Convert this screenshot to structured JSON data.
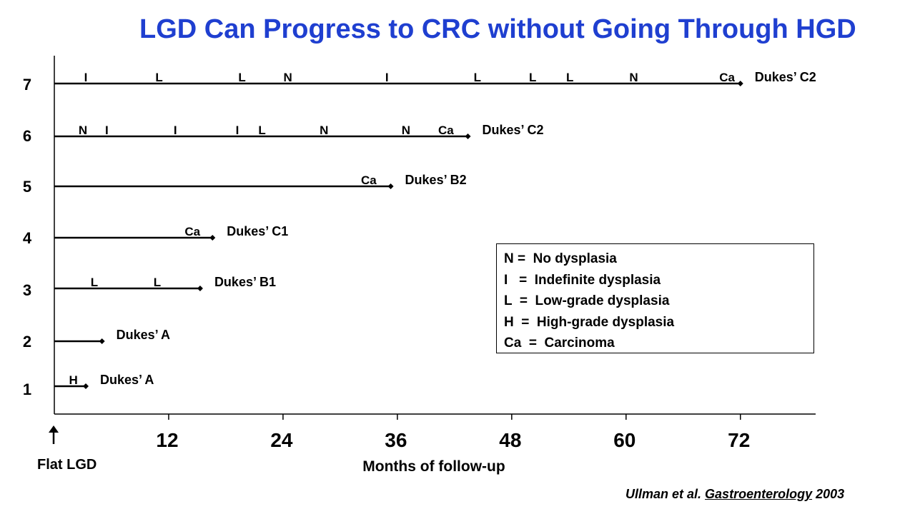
{
  "title": "LGD Can Progress to CRC without Going Through HGD",
  "chart_data": {
    "type": "timeline",
    "title": "LGD Can Progress to CRC without Going Through HGD",
    "xlabel": "Months of follow-up",
    "x_origin_label": "Flat LGD",
    "x_ticks": [
      "12",
      "24",
      "36",
      "48",
      "60",
      "72"
    ],
    "x_tick_values": [
      12,
      24,
      36,
      48,
      60,
      72
    ],
    "xlim": [
      0,
      80
    ],
    "y_categories": [
      "1",
      "2",
      "3",
      "4",
      "5",
      "6",
      "7"
    ],
    "patients": [
      {
        "id": "1",
        "end_month": 3.3,
        "outcome": "Dukes’ A",
        "findings": [
          {
            "label": "H",
            "month": 2
          }
        ]
      },
      {
        "id": "2",
        "end_month": 5,
        "outcome": "Dukes’ A",
        "findings": []
      },
      {
        "id": "3",
        "end_month": 15.3,
        "outcome": "Dukes’ B1",
        "findings": [
          {
            "label": "L",
            "month": 4.2
          },
          {
            "label": "L",
            "month": 10.8
          }
        ]
      },
      {
        "id": "4",
        "end_month": 16.6,
        "outcome": "Dukes’ C1",
        "findings": [
          {
            "label": "Ca",
            "month": 14.5
          }
        ]
      },
      {
        "id": "5",
        "end_month": 35.3,
        "outcome": "Dukes’ B2",
        "findings": [
          {
            "label": "Ca",
            "month": 33.0
          }
        ]
      },
      {
        "id": "6",
        "end_month": 43.4,
        "outcome": "Dukes’ C2",
        "findings": [
          {
            "label": "N",
            "month": 3
          },
          {
            "label": "I",
            "month": 5.5
          },
          {
            "label": "I",
            "month": 12.7
          },
          {
            "label": "I",
            "month": 19.2
          },
          {
            "label": "L",
            "month": 21.8
          },
          {
            "label": "N",
            "month": 28.3
          },
          {
            "label": "N",
            "month": 36.9
          },
          {
            "label": "Ca",
            "month": 41.1
          }
        ]
      },
      {
        "id": "7",
        "end_month": 72,
        "outcome": "Dukes’ C2",
        "findings": [
          {
            "label": "I",
            "month": 3.3
          },
          {
            "label": "L",
            "month": 11
          },
          {
            "label": "L",
            "month": 19.7
          },
          {
            "label": "N",
            "month": 24.5
          },
          {
            "label": "I",
            "month": 34.9
          },
          {
            "label": "L",
            "month": 44.4
          },
          {
            "label": "L",
            "month": 50.2
          },
          {
            "label": "L",
            "month": 54.1
          },
          {
            "label": "N",
            "month": 60.8
          },
          {
            "label": "Ca",
            "month": 70.6
          }
        ]
      }
    ],
    "legend": [
      "N =  No dysplasia",
      "I   =  Indefinite dysplasia",
      "L  =  Low-grade dysplasia",
      "H  =  High-grade dysplasia",
      "Ca  =  Carcinoma"
    ]
  },
  "citation": {
    "authors": "Ullman et al.",
    "journal": "Gastroenterology",
    "year": "2003"
  },
  "colors": {
    "title": "#1f3fd0",
    "lines": "#000000"
  }
}
